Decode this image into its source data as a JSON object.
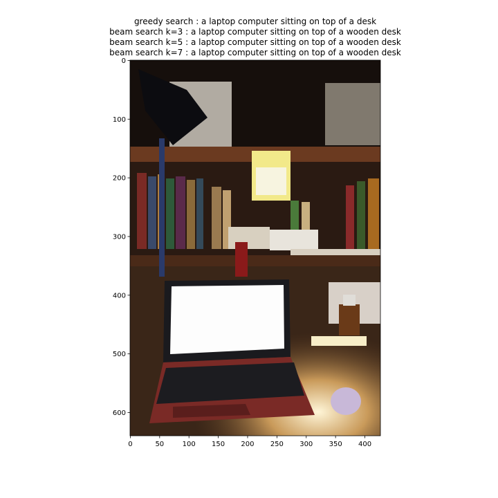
{
  "figure": {
    "title_lines": [
      "greedy search : a laptop computer sitting on top of a desk",
      "beam search k=3 :  a laptop computer sitting on top of a wooden desk",
      "beam search k=5 :  a laptop computer sitting on top of a wooden desk",
      "beam search k=7 :  a laptop computer sitting on top of a wooden desk"
    ],
    "xlim": [
      -0.5,
      426.5
    ],
    "ylim": [
      639.5,
      -0.5
    ],
    "xticks": [
      0,
      50,
      100,
      150,
      200,
      250,
      300,
      350,
      400
    ],
    "yticks": [
      0,
      100,
      200,
      300,
      400,
      500,
      600
    ]
  }
}
